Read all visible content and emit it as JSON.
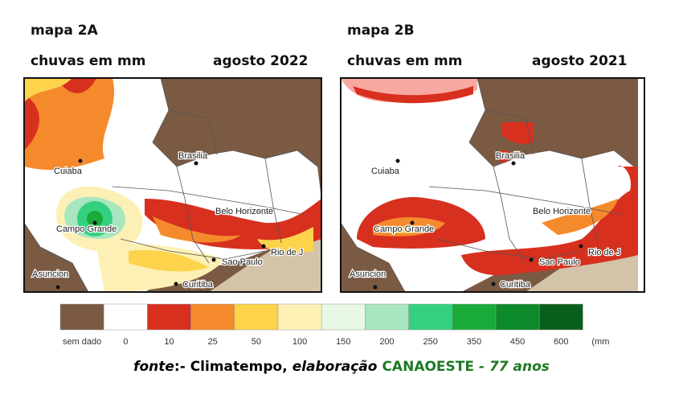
{
  "maps": [
    {
      "title": "mapa 2A",
      "subtitle": "chuvas em mm",
      "period": "agosto 2022",
      "cities": [
        "Cuiaba",
        "Brasilia",
        "Belo Horizonte",
        "Campo Grande",
        "Rio de J",
        "Sao Paulo",
        "Asuncion",
        "Curitiba"
      ]
    },
    {
      "title": "mapa 2B",
      "subtitle": "chuvas em mm",
      "period": "agosto 2021",
      "cities": [
        "Cuiaba",
        "Brasilia",
        "Belo Horizonte",
        "Campo Grande",
        "Rio de J",
        "Sao Paulo",
        "Asuncion",
        "Curitiba"
      ]
    }
  ],
  "legend": {
    "labels": [
      "sem dado",
      "0",
      "10",
      "25",
      "50",
      "100",
      "150",
      "200",
      "250",
      "350",
      "450",
      "600"
    ],
    "colors": [
      "#7b5a43",
      "#ffffff",
      "#d7301f",
      "#f58a2c",
      "#fdd34c",
      "#fdf0b5",
      "#e8f8e4",
      "#a8e6bf",
      "#35d07f",
      "#1aaa3a",
      "#0d8a2a",
      "#0a5e1c"
    ],
    "unit": "(mm"
  },
  "footer": {
    "parts": [
      "fonte",
      ":- Climatempo,",
      "elaboração",
      "CANAOESTE",
      "- 77 anos"
    ]
  }
}
